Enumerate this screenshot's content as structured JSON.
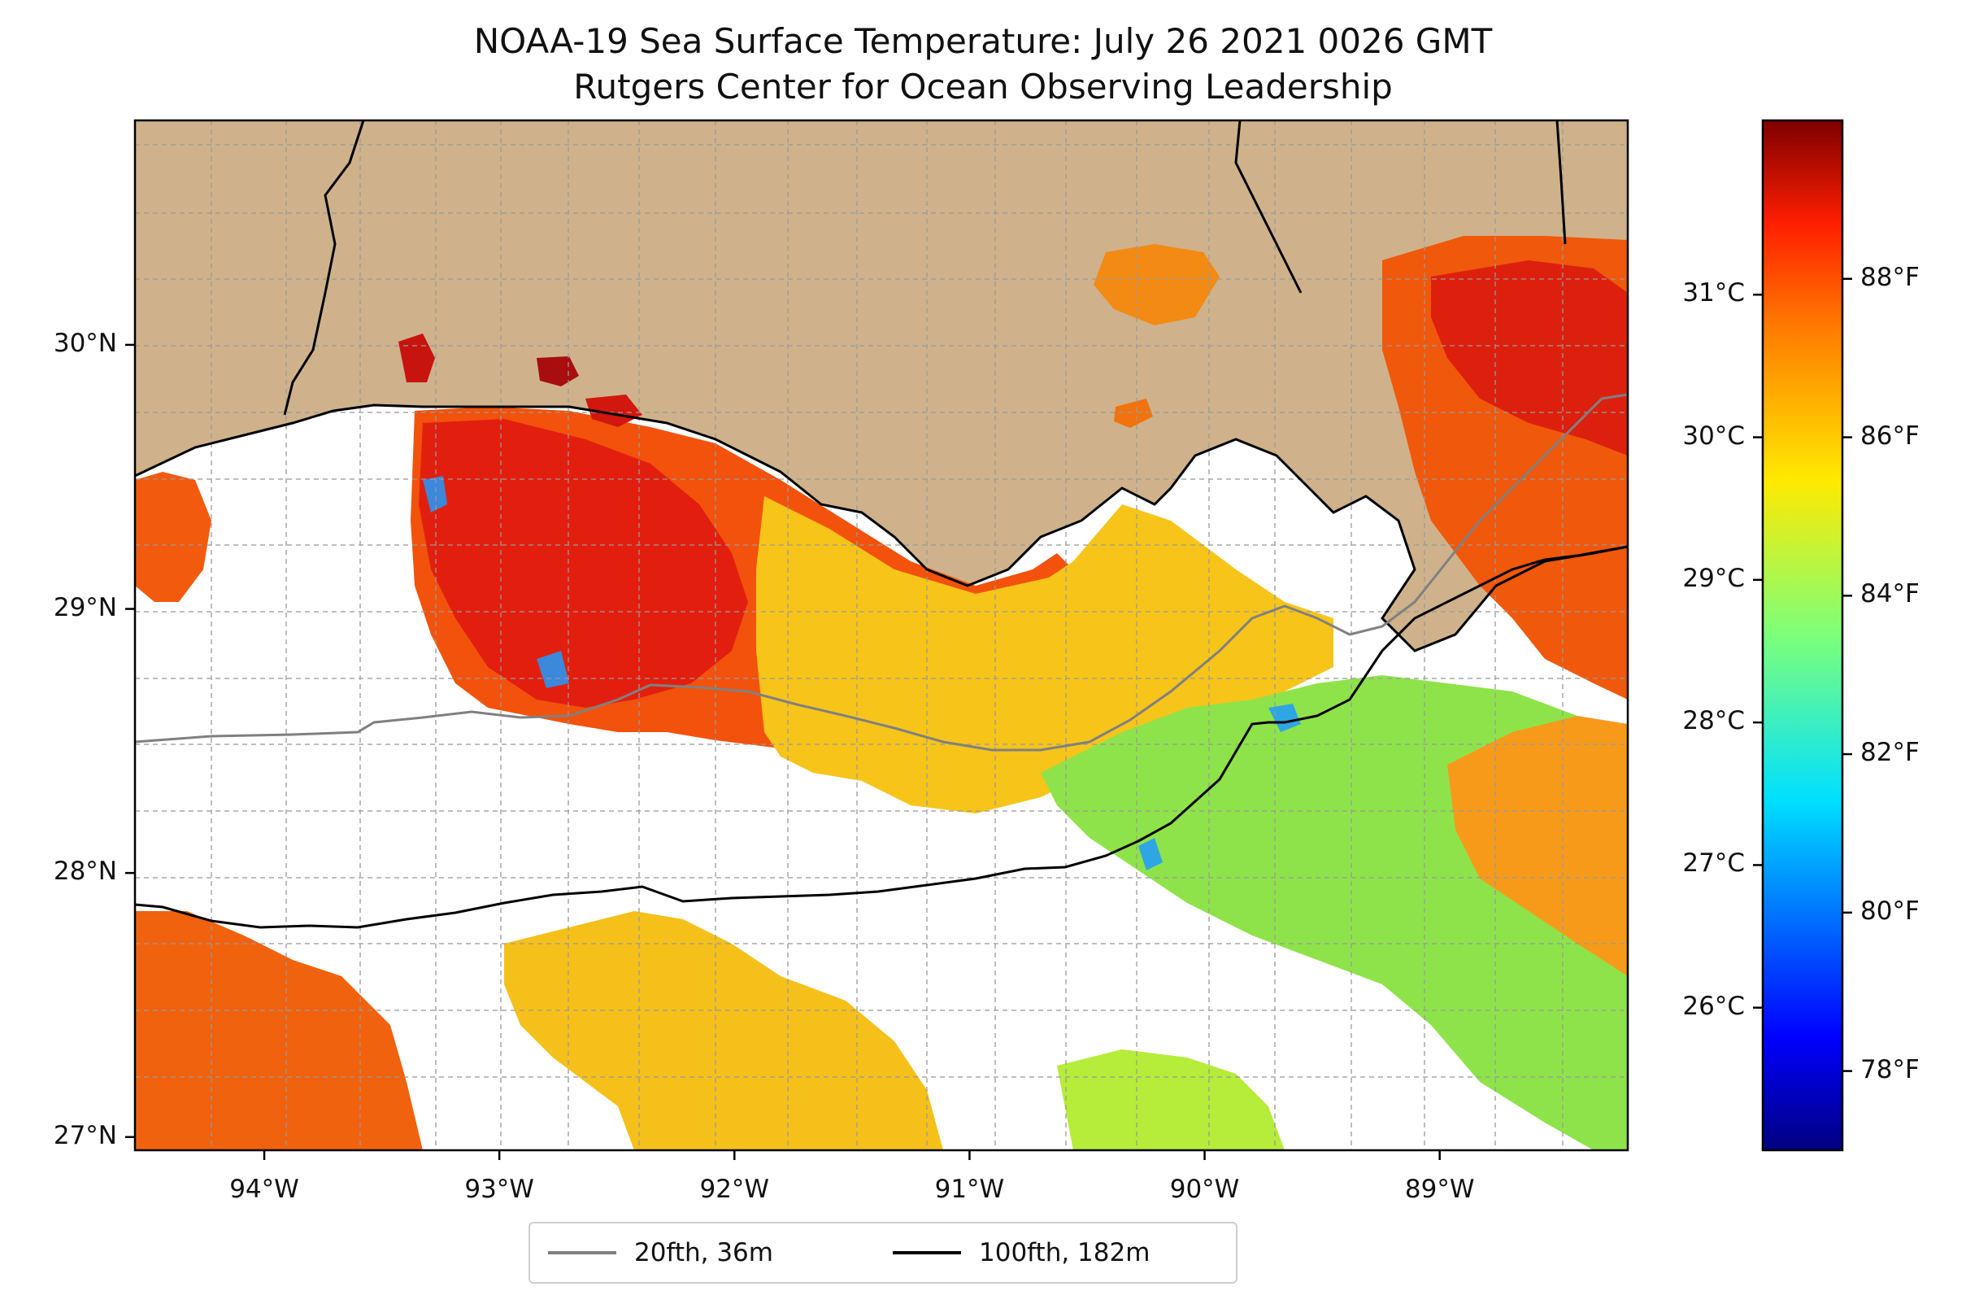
{
  "title": {
    "line1": "NOAA-19 Sea Surface Temperature: July 26 2021 0026 GMT",
    "line2": "Rutgers Center for Ocean Observing Leadership"
  },
  "map": {
    "lon_range": [
      -94.55,
      -88.2
    ],
    "lat_range": [
      26.95,
      30.85
    ],
    "land_color": "#cfb28b",
    "ocean_nodata_color": "#ffffff",
    "gridlines": true,
    "lon_ticks": [
      {
        "value": -94,
        "label": "94°W"
      },
      {
        "value": -93,
        "label": "93°W"
      },
      {
        "value": -92,
        "label": "92°W"
      },
      {
        "value": -91,
        "label": "91°W"
      },
      {
        "value": -90,
        "label": "90°W"
      },
      {
        "value": -89,
        "label": "89°W"
      }
    ],
    "lat_ticks": [
      {
        "value": 30,
        "label": "30°N"
      },
      {
        "value": 29,
        "label": "29°N"
      },
      {
        "value": 28,
        "label": "28°N"
      },
      {
        "value": 27,
        "label": "27°N"
      }
    ]
  },
  "colorbar": {
    "colormap": "jet",
    "range_f": [
      77,
      90
    ],
    "celsius_ticks": [
      {
        "value": 26,
        "label": "26°C"
      },
      {
        "value": 27,
        "label": "27°C"
      },
      {
        "value": 28,
        "label": "28°C"
      },
      {
        "value": 29,
        "label": "29°C"
      },
      {
        "value": 30,
        "label": "30°C"
      },
      {
        "value": 31,
        "label": "31°C"
      }
    ],
    "fahrenheit_ticks": [
      {
        "value": 78,
        "label": "78°F"
      },
      {
        "value": 80,
        "label": "80°F"
      },
      {
        "value": 82,
        "label": "82°F"
      },
      {
        "value": 84,
        "label": "84°F"
      },
      {
        "value": 86,
        "label": "86°F"
      },
      {
        "value": 88,
        "label": "88°F"
      }
    ]
  },
  "legend": {
    "items": [
      {
        "label": "20fth, 36m",
        "color": "#808080"
      },
      {
        "label": "100fth, 182m",
        "color": "#000000"
      }
    ]
  }
}
